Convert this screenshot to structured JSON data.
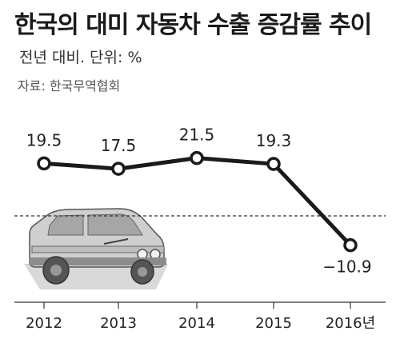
{
  "chart_data": {
    "type": "line",
    "title": "한국의 대미 자동차 수출 증감률 추이",
    "subtitle": "전년 대비.  단위: %",
    "source": "자료: 한국무역협회",
    "categories": [
      "2012",
      "2013",
      "2014",
      "2015",
      "2016년"
    ],
    "series": [
      {
        "values": [
          19.5,
          17.5,
          21.5,
          19.3,
          -10.9
        ]
      }
    ],
    "data_labels": [
      "19.5",
      "17.5",
      "21.5",
      "19.3",
      "−10.9"
    ],
    "baseline": 0,
    "grid": false,
    "legend": "none",
    "colors": {
      "line": "#1a1a1a",
      "marker_fill": "#ffffff",
      "plot_bg": "#ffffff",
      "baseline": "#333333"
    }
  }
}
